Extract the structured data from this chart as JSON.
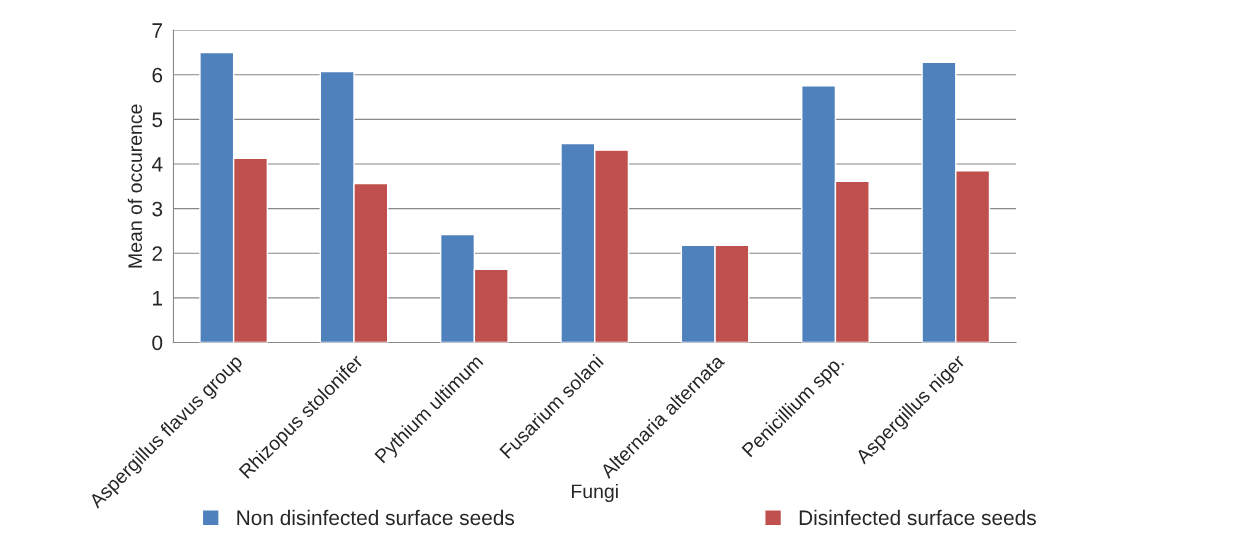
{
  "chart_data": {
    "type": "bar",
    "xlabel": "Fungi",
    "ylabel": "Mean of occurence",
    "categories": [
      "Aspergillus flavus group",
      "Rhizopus stolonifer",
      "Pythium ultimum",
      "Fusarium solani",
      "Alternaria alternata",
      "Penicillium spp.",
      "Aspergillus niger"
    ],
    "series": [
      {
        "name": "Non disinfected surface seeds",
        "color": "#4f81bd",
        "values": [
          6.5,
          6.07,
          2.42,
          4.46,
          2.18,
          5.75,
          6.28
        ]
      },
      {
        "name": "Disinfected surface seeds",
        "color": "#c0504d",
        "values": [
          4.13,
          3.56,
          1.64,
          4.31,
          2.18,
          3.61,
          3.85
        ]
      }
    ],
    "ylim": [
      0,
      7
    ],
    "yticks": [
      0,
      1,
      2,
      3,
      4,
      5,
      6,
      7
    ],
    "grid": "y",
    "legend": "bottom"
  }
}
